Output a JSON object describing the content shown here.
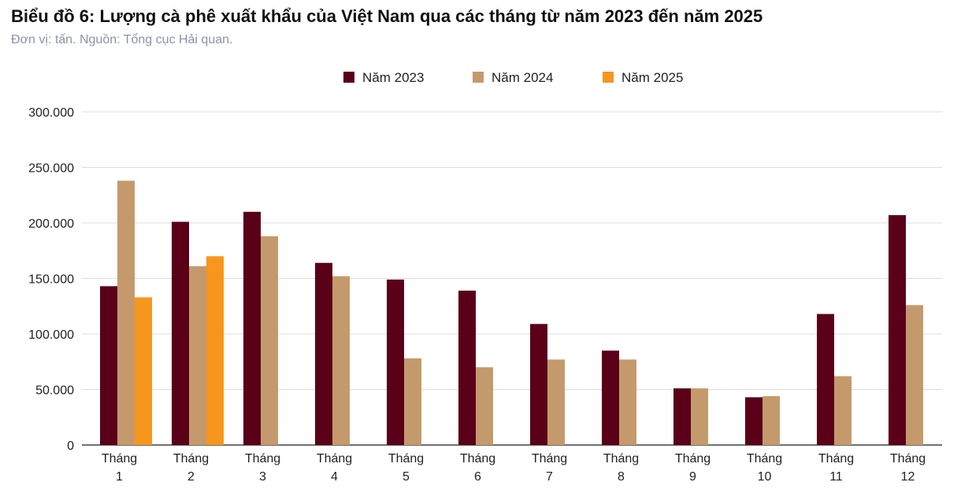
{
  "chart_data": {
    "type": "bar",
    "title": "Biểu đồ 6: Lượng cà phê xuất khẩu của Việt Nam qua các tháng từ năm 2023 đến năm 2025",
    "subtitle": "Đơn vị: tấn. Nguồn: Tổng cục Hải quan.",
    "categories": [
      [
        "Tháng",
        "1"
      ],
      [
        "Tháng",
        "2"
      ],
      [
        "Tháng",
        "3"
      ],
      [
        "Tháng",
        "4"
      ],
      [
        "Tháng",
        "5"
      ],
      [
        "Tháng",
        "6"
      ],
      [
        "Tháng",
        "7"
      ],
      [
        "Tháng",
        "8"
      ],
      [
        "Tháng",
        "9"
      ],
      [
        "Tháng",
        "10"
      ],
      [
        "Tháng",
        "11"
      ],
      [
        "Tháng",
        "12"
      ]
    ],
    "series": [
      {
        "name": "Năm 2023",
        "color": "#5a0019",
        "values": [
          143000,
          201000,
          210000,
          164000,
          149000,
          139000,
          109000,
          85000,
          51000,
          43000,
          118000,
          207000
        ]
      },
      {
        "name": "Năm 2024",
        "color": "#c49a6c",
        "values": [
          238000,
          161000,
          188000,
          152000,
          78000,
          70000,
          77000,
          77000,
          51000,
          44000,
          62000,
          126000
        ]
      },
      {
        "name": "Năm 2025",
        "color": "#f7961d",
        "values": [
          133000,
          170000,
          null,
          null,
          null,
          null,
          null,
          null,
          null,
          null,
          null,
          null
        ]
      }
    ],
    "ylim": [
      0,
      300000
    ],
    "yticks": [
      "0",
      "50.000",
      "100.000",
      "150.000",
      "200.000",
      "250.000",
      "300.000"
    ],
    "ytick_values": [
      0,
      50000,
      100000,
      150000,
      200000,
      250000,
      300000
    ],
    "grid": true,
    "legend": "top-center"
  }
}
